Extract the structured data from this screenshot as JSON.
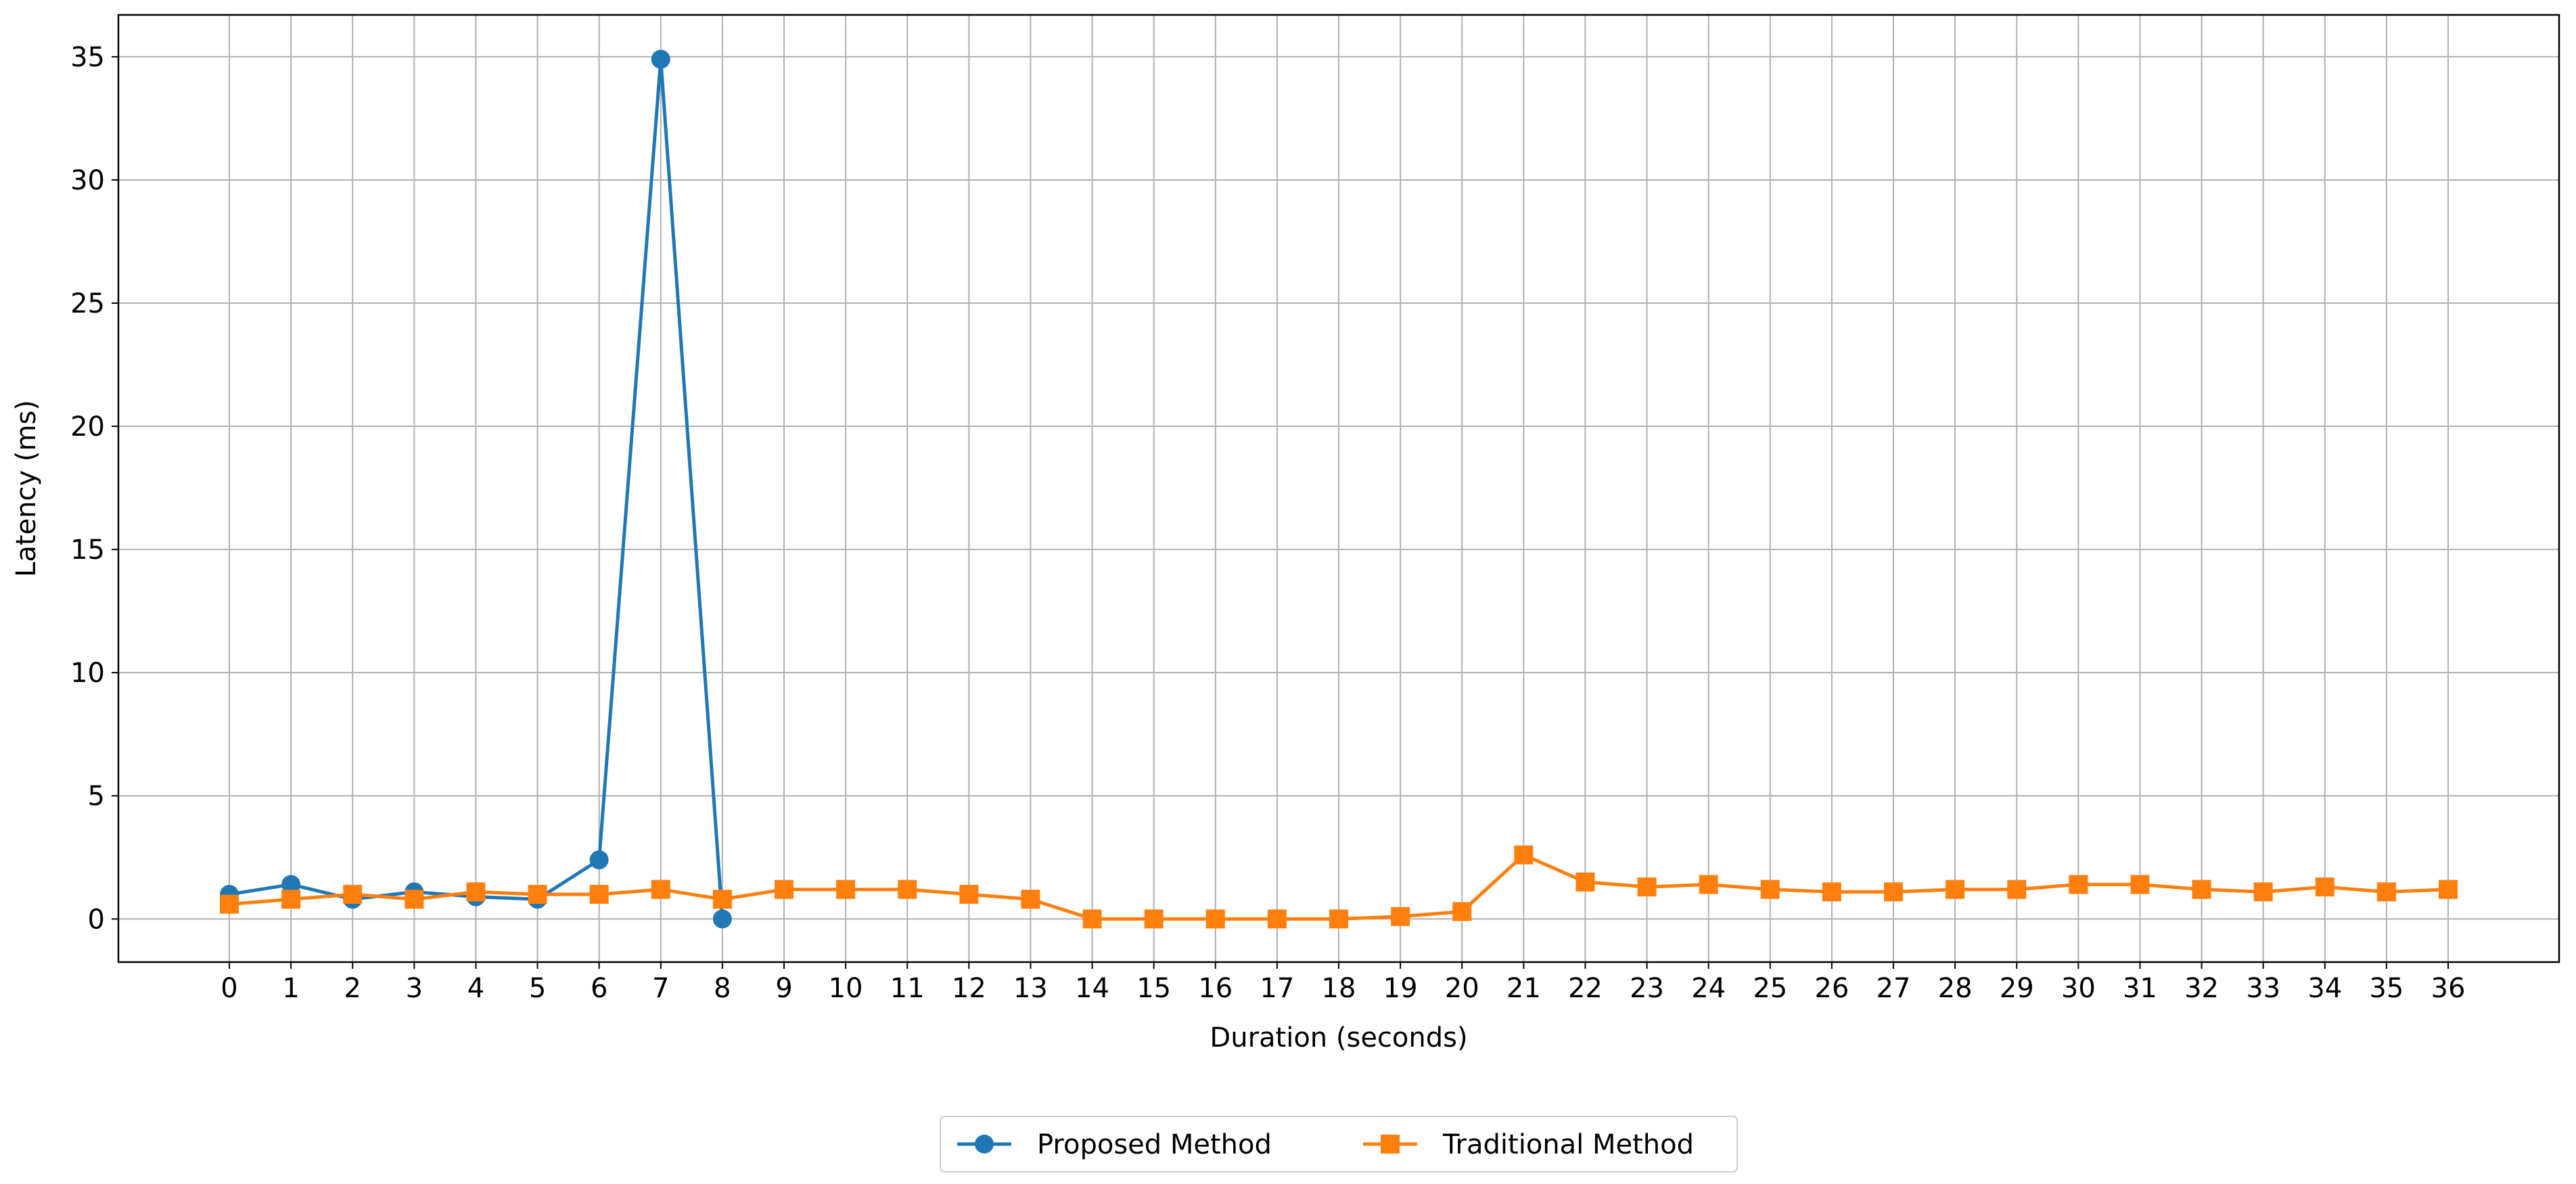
{
  "chart_data": {
    "type": "line",
    "title": "",
    "xlabel": "Duration (seconds)",
    "ylabel": "Latency (ms)",
    "xlim": [
      -1.8,
      37.8
    ],
    "ylim": [
      -1.75,
      36.7
    ],
    "xticks": [
      0,
      1,
      2,
      3,
      4,
      5,
      6,
      7,
      8,
      9,
      10,
      11,
      12,
      13,
      14,
      15,
      16,
      17,
      18,
      19,
      20,
      21,
      22,
      23,
      24,
      25,
      26,
      27,
      28,
      29,
      30,
      31,
      32,
      33,
      34,
      35,
      36
    ],
    "yticks": [
      0,
      5,
      10,
      15,
      20,
      25,
      30,
      35
    ],
    "grid": true,
    "legend_position": "bottom-center",
    "series": [
      {
        "name": "Proposed Method",
        "color": "#1f77b4",
        "marker": "circle",
        "x": [
          0,
          1,
          2,
          3,
          4,
          5,
          6,
          7,
          8
        ],
        "values": [
          1.0,
          1.4,
          0.8,
          1.1,
          0.9,
          0.8,
          2.4,
          34.9,
          0.0
        ]
      },
      {
        "name": "Traditional Method",
        "color": "#ff7f0e",
        "marker": "square",
        "x": [
          0,
          1,
          2,
          3,
          4,
          5,
          6,
          7,
          8,
          9,
          10,
          11,
          12,
          13,
          14,
          15,
          16,
          17,
          18,
          19,
          20,
          21,
          22,
          23,
          24,
          25,
          26,
          27,
          28,
          29,
          30,
          31,
          32,
          33,
          34,
          35,
          36
        ],
        "values": [
          0.6,
          0.8,
          1.0,
          0.8,
          1.1,
          1.0,
          1.0,
          1.2,
          0.8,
          1.2,
          1.2,
          1.2,
          1.0,
          0.8,
          0.0,
          0.0,
          0.0,
          0.0,
          0.0,
          0.1,
          0.3,
          2.6,
          1.5,
          1.3,
          1.4,
          1.2,
          1.1,
          1.1,
          1.2,
          1.2,
          1.4,
          1.4,
          1.2,
          1.1,
          1.3,
          1.1,
          1.2
        ]
      }
    ]
  }
}
